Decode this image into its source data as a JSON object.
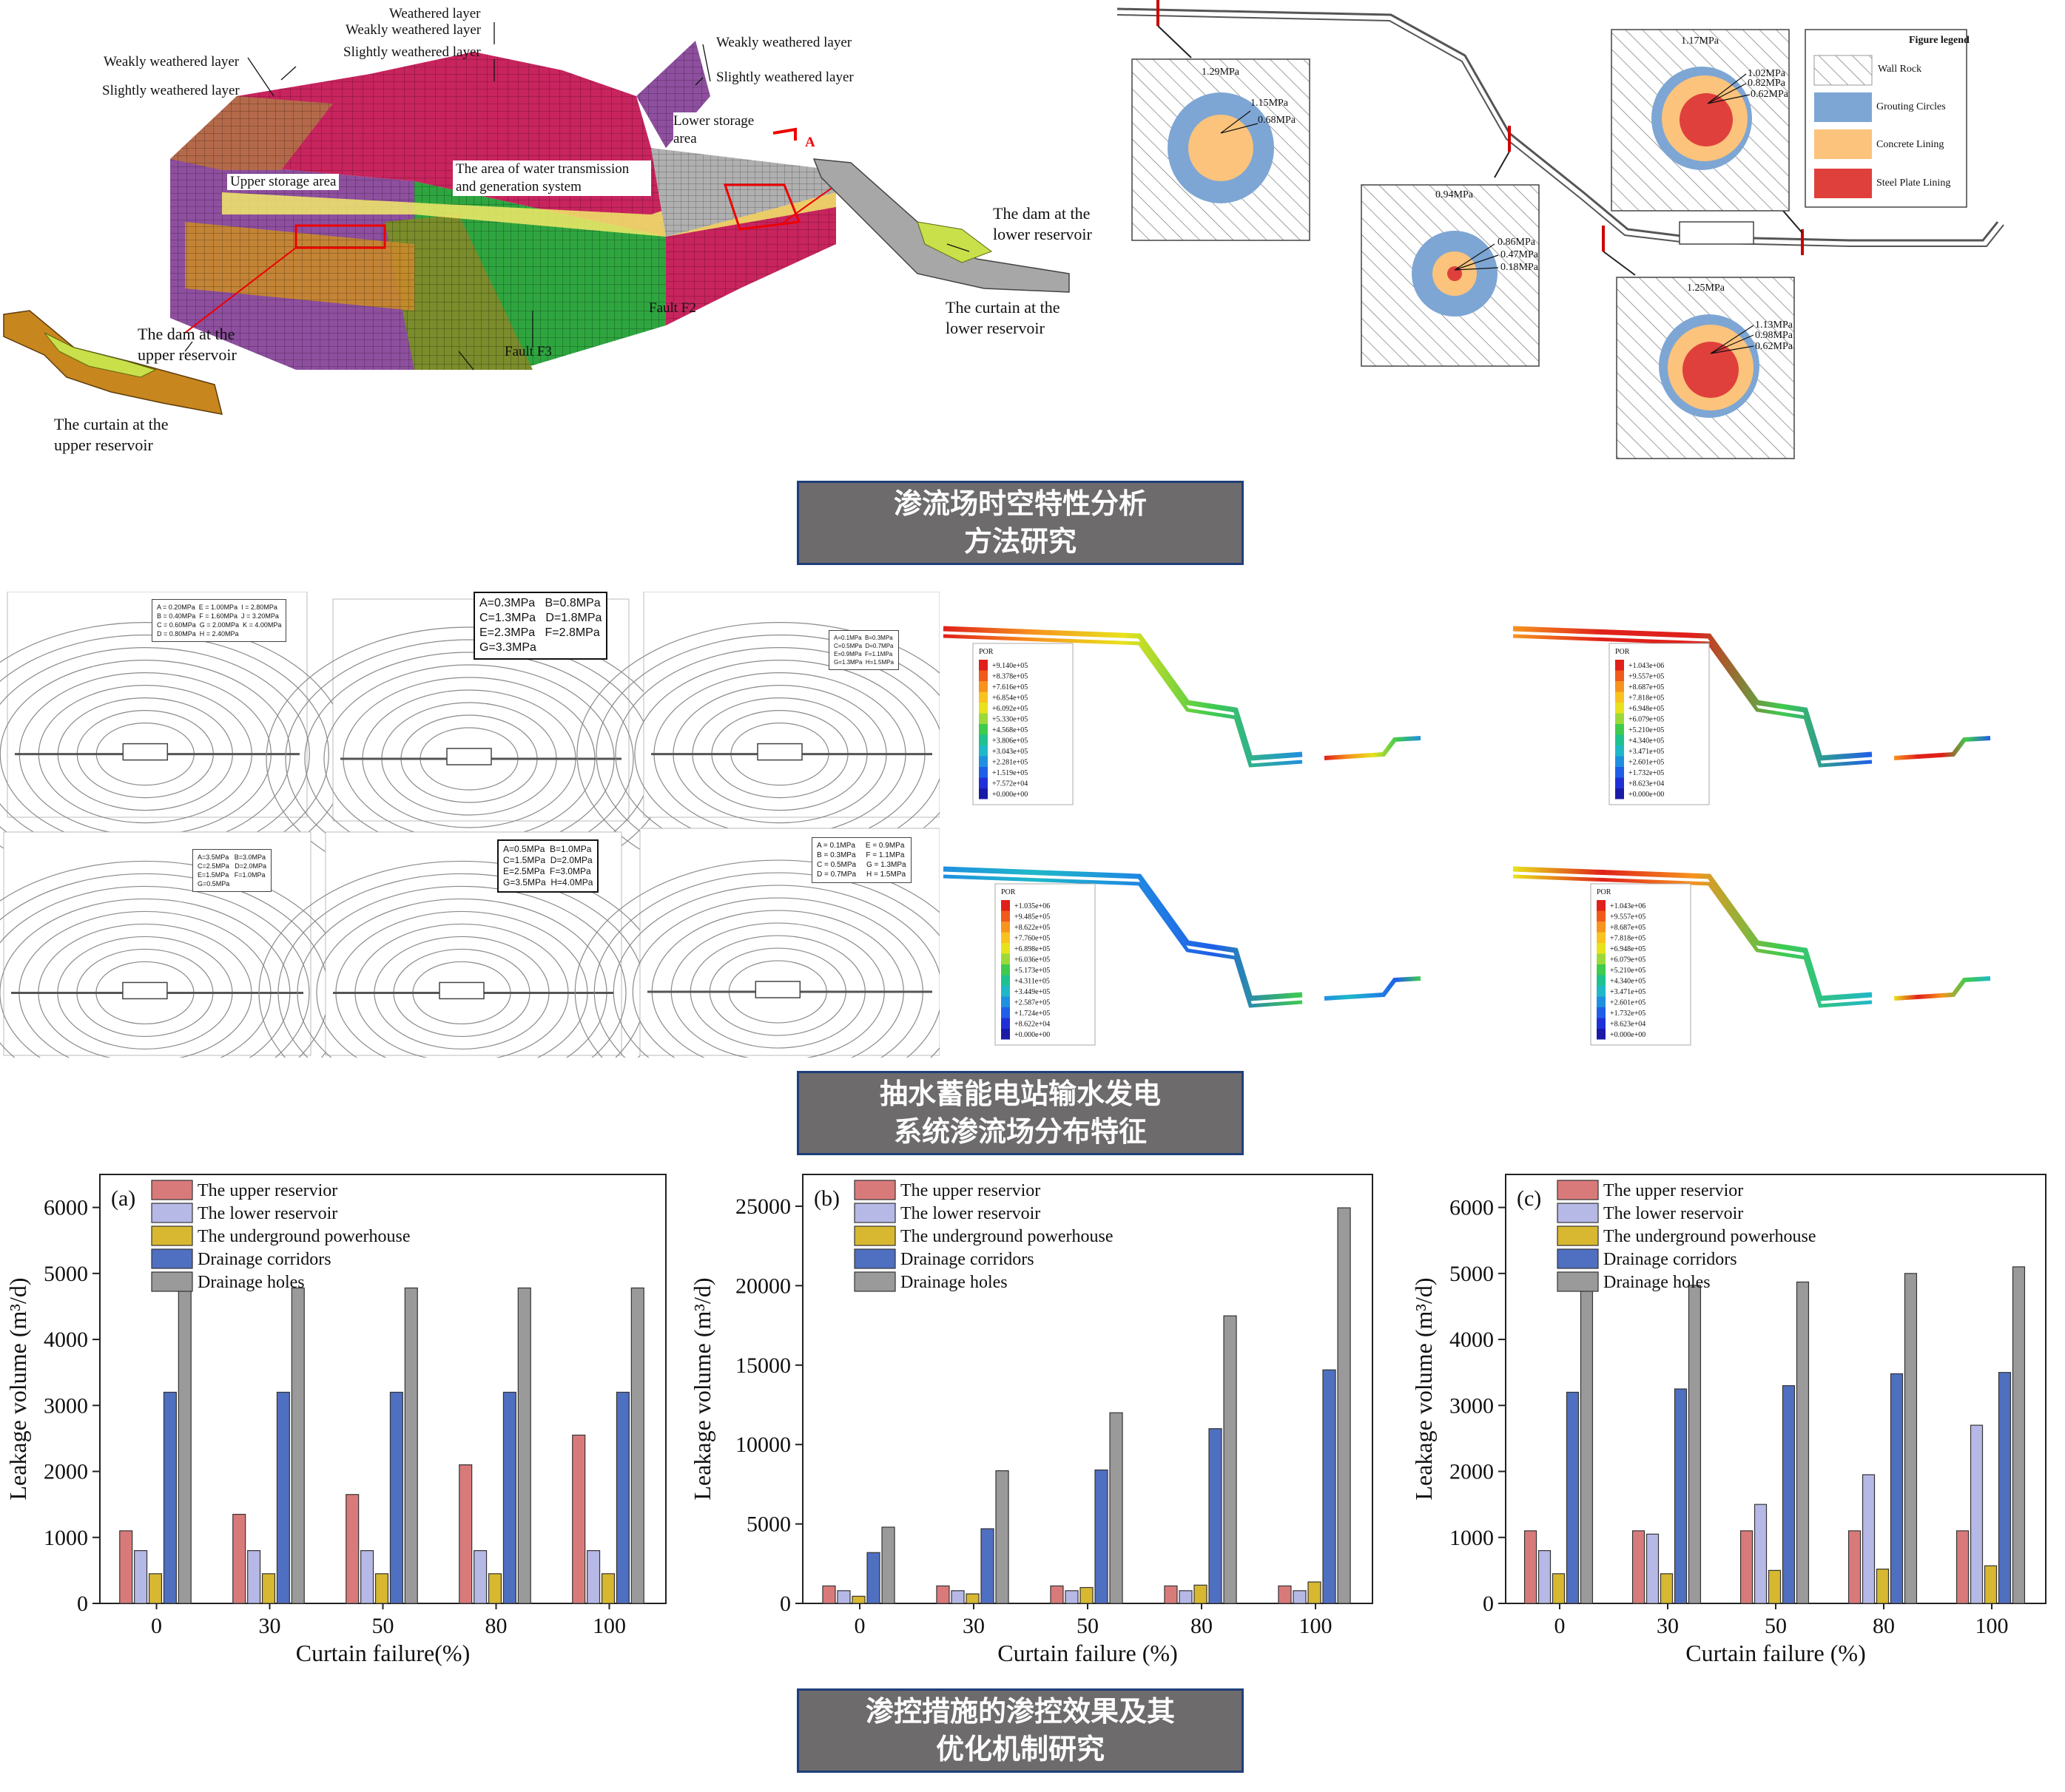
{
  "model3d": {
    "labels": {
      "weathered": "Weathered layer",
      "weakly_top": "Weakly weathered layer",
      "slightly_top": "Slightly weathered layer",
      "weakly_left": "Weakly weathered layer",
      "slightly_left": "Slightly weathered layer",
      "weakly_right": "Weakly weathered layer",
      "slightly_right": "Slightly weathered layer",
      "lower_storage": "Lower storage area",
      "upper_storage": "Upper storage area",
      "water_system": "The area of water transmission and generation system",
      "fault_f2": "Fault F2",
      "fault_f3": "Fault F3",
      "section_mark": "A",
      "dam_upper": "The dam at the upper reservoir",
      "curtain_upper": "The curtain at the upper reservoir",
      "dam_lower": "The dam at the lower reservoir",
      "curtain_lower": "The curtain at the lower reservoir"
    }
  },
  "sections": {
    "legend_title": "Figure legend",
    "legend_items": [
      "Wall Rock",
      "Grouting Circles",
      "Concrete Lining",
      "Steel Plate Lining"
    ],
    "legend_colors": [
      "#ffffff",
      "#7da6d4",
      "#fbc37b",
      "#e0403c"
    ],
    "s1": {
      "top": "1.29MPa",
      "a": "1.15MPa",
      "b": "0.68MPa"
    },
    "s2": {
      "top": "0.94MPa",
      "a": "0.86MPa",
      "b": "0.47MPa",
      "c": "0.18MPa"
    },
    "s3": {
      "top": "1.17MPa",
      "a": "1.02MPa",
      "b": "0.82MPa",
      "c": "0.62MPa"
    },
    "s4": {
      "top": "1.25MPa",
      "a": "1.13MPa",
      "b": "0.98MPa",
      "c": "0.62MPa"
    }
  },
  "banners": {
    "b1_line1": "渗流场时空特性分析",
    "b1_line2": "方法研究",
    "b2_line1": "抽水蓄能电站输水发电",
    "b2_line2": "系统渗流场分布特征",
    "b3_line1": "渗控措施的渗控效果及其",
    "b3_line2": "优化机制研究"
  },
  "contours": {
    "c1": "A = 0.20MPa  E = 1.00MPa  I = 2.80MPa\nB = 0.40MPa  F = 1.60MPa  J = 3.20MPa\nC = 0.60MPa  G = 2.00MPa  K = 4.00MPa\nD = 0.80MPa  H = 2.40MPa",
    "c2": "A=0.3MPa   B=0.8MPa\nC=1.3MPa   D=1.8MPa\nE=2.3MPa   F=2.8MPa\nG=3.3MPa",
    "c3": "A=0.1MPa  B=0.3MPa\nC=0.5MPa  D=0.7MPa\nE=0.9MPa  F=1.1MPa\nG=1.3MPa  H=1.5MPa",
    "c4": "A=3.5MPa   B=3.0MPa\nC=2.5MPa   D=2.0MPa\nE=1.5MPa   F=1.0MPa\nG=0.5MPa",
    "c5": "A=0.5MPa  B=1.0MPa\nC=1.5MPa  D=2.0MPa\nE=2.5MPa  F=3.0MPa\nG=3.5MPa  H=4.0MPa",
    "c6": "A = 0.1MPa     E = 0.9MPa\nB = 0.3MPa     F = 1.1MPa\nC = 0.5MPa     G = 1.3MPa\nD = 0.7MPa     H = 1.5MPa"
  },
  "por_legends": {
    "title": "POR",
    "p1": [
      "+9.140e+05",
      "+8.378e+05",
      "+7.616e+05",
      "+6.854e+05",
      "+6.092e+05",
      "+5.330e+05",
      "+4.568e+05",
      "+3.806e+05",
      "+3.043e+05",
      "+2.281e+05",
      "+1.519e+05",
      "+7.572e+04",
      "+0.000e+00"
    ],
    "p2": [
      "+1.043e+06",
      "+9.557e+05",
      "+8.687e+05",
      "+7.818e+05",
      "+6.948e+05",
      "+6.079e+05",
      "+5.210e+05",
      "+4.340e+05",
      "+3.471e+05",
      "+2.601e+05",
      "+1.732e+05",
      "+8.623e+04",
      "+0.000e+00"
    ],
    "p3": [
      "+1.035e+06",
      "+9.485e+05",
      "+8.622e+05",
      "+7.760e+05",
      "+6.898e+05",
      "+6.036e+05",
      "+5.173e+05",
      "+4.311e+05",
      "+3.449e+05",
      "+2.587e+05",
      "+1.724e+05",
      "+8.622e+04",
      "+0.000e+00"
    ],
    "p4": [
      "+1.043e+06",
      "+9.557e+05",
      "+8.687e+05",
      "+7.818e+05",
      "+6.948e+05",
      "+6.079e+05",
      "+5.210e+05",
      "+4.340e+05",
      "+3.471e+05",
      "+2.601e+05",
      "+1.732e+05",
      "+8.623e+04",
      "+0.000e+00"
    ],
    "colors": [
      "#e0201a",
      "#f05a1a",
      "#f7931e",
      "#f9c21f",
      "#e8e21c",
      "#9bd93a",
      "#3ecb4e",
      "#1fc28f",
      "#1fb8c8",
      "#1f8fe0",
      "#1f5fe8",
      "#2030d8",
      "#1a1aa8"
    ]
  },
  "chart_data": [
    {
      "type": "bar",
      "panel": "(a)",
      "categories": [
        "0",
        "30",
        "50",
        "80",
        "100"
      ],
      "xlabel": "Curtain failure(%)",
      "ylabel": "Leakage volume (m³/d)",
      "ylim": [
        0,
        6500
      ],
      "yticks": [
        0,
        1000,
        2000,
        3000,
        4000,
        5000,
        6000
      ],
      "legend_position": "top-left",
      "series": [
        {
          "name": "The upper reservior",
          "color": "#d97a7a",
          "values": [
            1100,
            1350,
            1650,
            2100,
            2550
          ]
        },
        {
          "name": "The lower reservoir",
          "color": "#b6b8e6",
          "values": [
            800,
            800,
            800,
            800,
            800
          ]
        },
        {
          "name": "The underground powerhouse",
          "color": "#d7b830",
          "values": [
            450,
            450,
            450,
            450,
            450
          ]
        },
        {
          "name": "Drainage corridors",
          "color": "#4f6fc0",
          "values": [
            3200,
            3200,
            3200,
            3200,
            3200
          ]
        },
        {
          "name": "Drainage holes",
          "color": "#9a9a9a",
          "values": [
            4780,
            4780,
            4780,
            4780,
            4780
          ]
        }
      ]
    },
    {
      "type": "bar",
      "panel": "(b)",
      "categories": [
        "0",
        "30",
        "50",
        "80",
        "100"
      ],
      "xlabel": "Curtain failure (%)",
      "ylabel": "Leakage volume (m³/d)",
      "ylim": [
        0,
        27000
      ],
      "yticks": [
        0,
        5000,
        10000,
        15000,
        20000,
        25000
      ],
      "legend_position": "top-left",
      "series": [
        {
          "name": "The upper reservior",
          "color": "#d97a7a",
          "values": [
            1100,
            1100,
            1100,
            1100,
            1100
          ]
        },
        {
          "name": "The lower reservoir",
          "color": "#b6b8e6",
          "values": [
            800,
            800,
            800,
            800,
            800
          ]
        },
        {
          "name": "The underground powerhouse",
          "color": "#d7b830",
          "values": [
            450,
            600,
            1000,
            1150,
            1350
          ]
        },
        {
          "name": "Drainage corridors",
          "color": "#4f6fc0",
          "values": [
            3200,
            4700,
            8400,
            11000,
            14700
          ]
        },
        {
          "name": "Drainage holes",
          "color": "#9a9a9a",
          "values": [
            4800,
            8350,
            12000,
            18100,
            24900
          ]
        }
      ]
    },
    {
      "type": "bar",
      "panel": "(c)",
      "categories": [
        "0",
        "30",
        "50",
        "80",
        "100"
      ],
      "xlabel": "Curtain failure (%)",
      "ylabel": "Leakage volume (m³/d)",
      "ylim": [
        0,
        6500
      ],
      "yticks": [
        0,
        1000,
        2000,
        3000,
        4000,
        5000,
        6000
      ],
      "legend_position": "top-left",
      "series": [
        {
          "name": "The upper reservior",
          "color": "#d97a7a",
          "values": [
            1100,
            1100,
            1100,
            1100,
            1100
          ]
        },
        {
          "name": "The lower reservoir",
          "color": "#b6b8e6",
          "values": [
            800,
            1050,
            1500,
            1950,
            2700
          ]
        },
        {
          "name": "The underground powerhouse",
          "color": "#d7b830",
          "values": [
            450,
            450,
            500,
            520,
            570
          ]
        },
        {
          "name": "Drainage corridors",
          "color": "#4f6fc0",
          "values": [
            3200,
            3250,
            3300,
            3480,
            3500
          ]
        },
        {
          "name": "Drainage holes",
          "color": "#9a9a9a",
          "values": [
            4780,
            4820,
            4870,
            5000,
            5100
          ]
        }
      ]
    }
  ]
}
